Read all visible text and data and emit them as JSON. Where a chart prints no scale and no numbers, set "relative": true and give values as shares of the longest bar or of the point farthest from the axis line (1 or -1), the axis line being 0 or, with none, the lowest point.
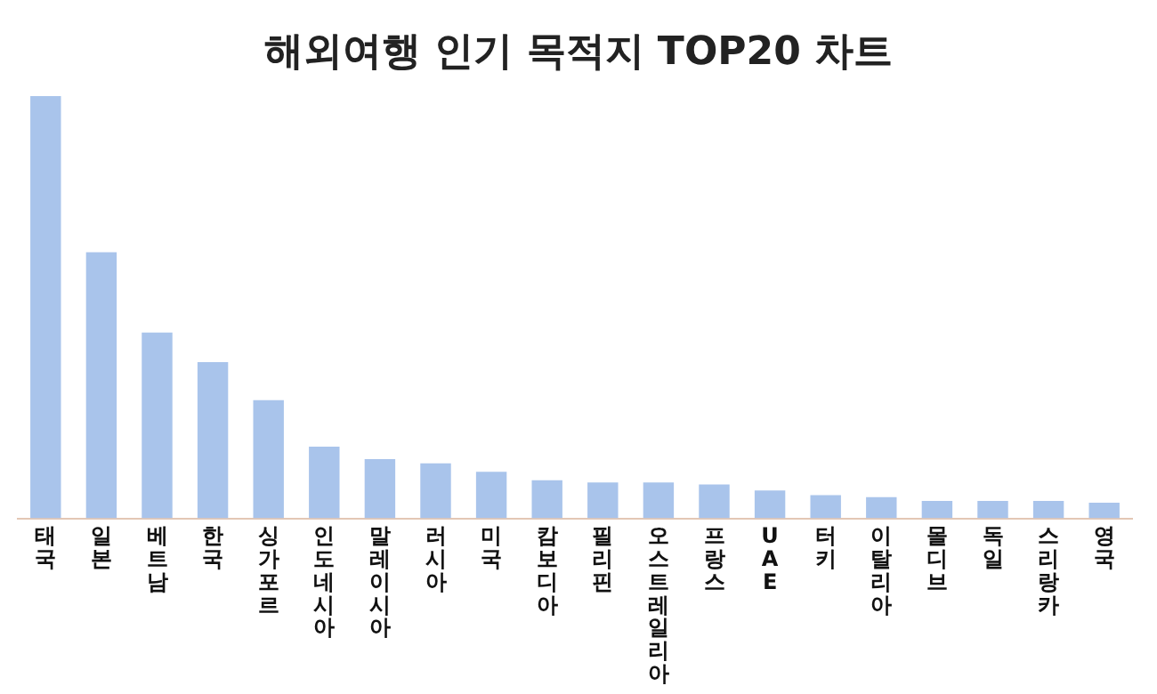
{
  "chart_data": {
    "type": "bar",
    "title": "해외여행 인기 목적지 TOP20 차트",
    "relative": true,
    "categories": [
      "태국",
      "일본",
      "베트남",
      "한국",
      "싱가포르",
      "인도네시아",
      "말레이시아",
      "러시아",
      "미국",
      "캄보디아",
      "필리핀",
      "오스트레일리아",
      "프랑스",
      "UAE",
      "터키",
      "이탈리아",
      "몰디브",
      "독일",
      "스리랑카",
      "영국"
    ],
    "values": [
      1,
      0.63,
      0.44,
      0.37,
      0.28,
      0.17,
      0.14,
      0.13,
      0.11,
      0.09,
      0.085,
      0.085,
      0.08,
      0.066,
      0.055,
      0.05,
      0.041,
      0.041,
      0.041,
      0.037
    ],
    "color": "#a9c4eb",
    "grid": false,
    "legend": false
  }
}
